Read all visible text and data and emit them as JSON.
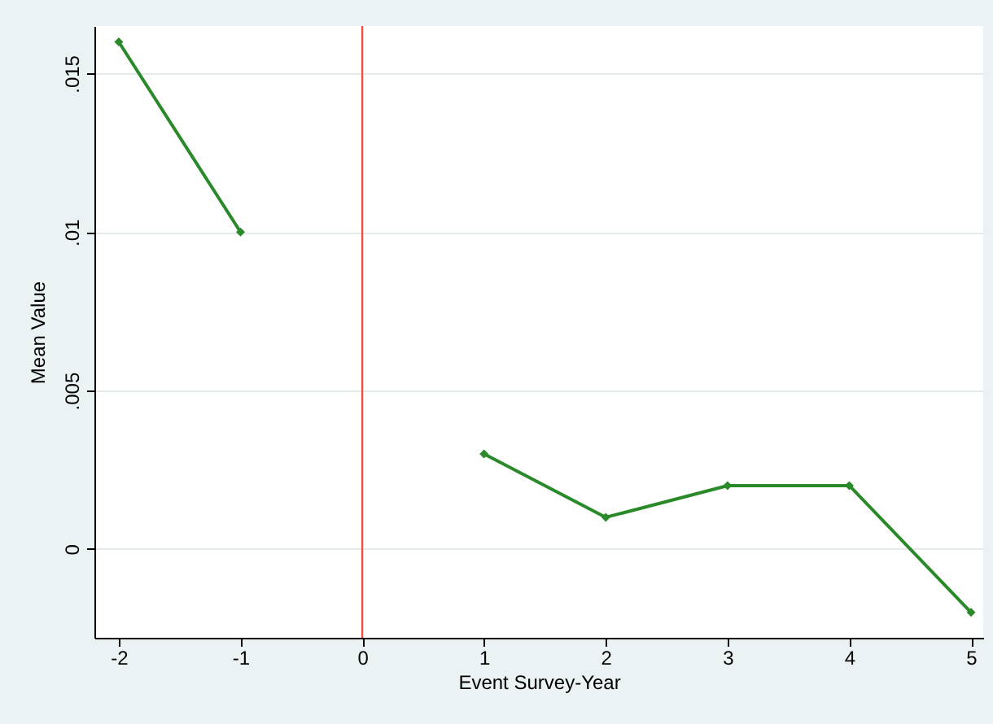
{
  "chart_data": {
    "type": "line",
    "xlabel": "Event Survey-Year",
    "ylabel": "Mean Value",
    "x": [
      -2,
      -1,
      0,
      1,
      2,
      3,
      4,
      5
    ],
    "series": [
      {
        "color": "#2a8a2a",
        "values": [
          0.016,
          0.01,
          null,
          0.003,
          0.001,
          0.002,
          0.002,
          -0.002
        ]
      }
    ],
    "xlim": [
      -2.2,
      5.1
    ],
    "xticks": [
      -2,
      -1,
      0,
      1,
      2,
      3,
      4,
      5
    ],
    "ylim": [
      -0.0028,
      0.0165
    ],
    "yticks": [
      {
        "value": 0,
        "label": "0"
      },
      {
        "value": 0.005,
        "label": ".005"
      },
      {
        "value": 0.01,
        "label": ".01"
      },
      {
        "value": 0.015,
        "label": ".015"
      }
    ],
    "grid": "y",
    "marker": "diamond",
    "line_style": "solid",
    "ref_lines": [
      {
        "axis": "x",
        "value": 0,
        "color": "#e8524a"
      }
    ]
  }
}
